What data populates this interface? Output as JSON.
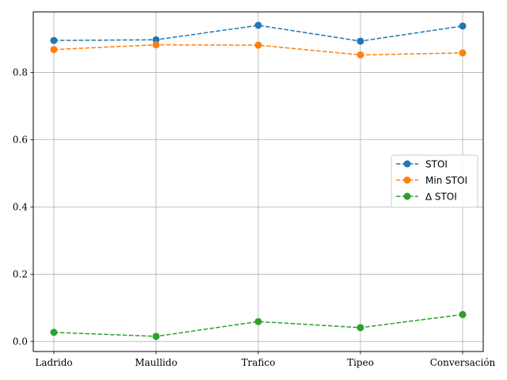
{
  "chart_data": {
    "type": "line",
    "title": "",
    "xlabel": "",
    "ylabel": "",
    "categories": [
      "Ladrido",
      "Maullido",
      "Trafico",
      "Tipeo",
      "Conversación"
    ],
    "ylim": [
      -0.03,
      0.98
    ],
    "yticks": [
      0.0,
      0.2,
      0.4,
      0.6,
      0.8
    ],
    "grid": true,
    "legend_position": "center-right",
    "series": [
      {
        "name": "STOI",
        "color": "#1f77b4",
        "values": [
          0.895,
          0.897,
          0.94,
          0.893,
          0.938
        ]
      },
      {
        "name": "Min STOI",
        "color": "#ff7f0e",
        "values": [
          0.868,
          0.882,
          0.881,
          0.852,
          0.858
        ]
      },
      {
        "name": "∆ STOI",
        "color": "#2ca02c",
        "values": [
          0.027,
          0.015,
          0.059,
          0.041,
          0.08
        ]
      }
    ]
  }
}
